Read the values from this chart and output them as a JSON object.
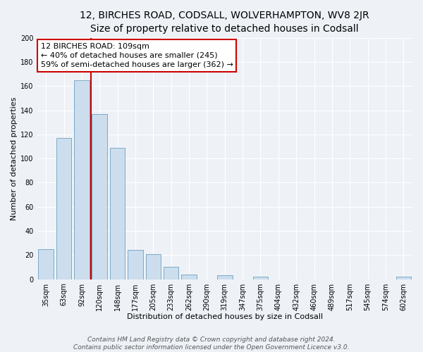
{
  "title": "12, BIRCHES ROAD, CODSALL, WOLVERHAMPTON, WV8 2JR",
  "subtitle": "Size of property relative to detached houses in Codsall",
  "xlabel": "Distribution of detached houses by size in Codsall",
  "ylabel": "Number of detached properties",
  "bar_color": "#ccdded",
  "bar_edge_color": "#7aaac8",
  "categories": [
    "35sqm",
    "63sqm",
    "92sqm",
    "120sqm",
    "148sqm",
    "177sqm",
    "205sqm",
    "233sqm",
    "262sqm",
    "290sqm",
    "319sqm",
    "347sqm",
    "375sqm",
    "404sqm",
    "432sqm",
    "460sqm",
    "489sqm",
    "517sqm",
    "545sqm",
    "574sqm",
    "602sqm"
  ],
  "values": [
    25,
    117,
    165,
    137,
    109,
    24,
    21,
    10,
    4,
    0,
    3,
    0,
    2,
    0,
    0,
    0,
    0,
    0,
    0,
    0,
    2
  ],
  "property_line_x": 2.5,
  "anno_line1": "12 BIRCHES ROAD: 109sqm",
  "anno_line2": "← 40% of detached houses are smaller (245)",
  "anno_line3": "59% of semi-detached houses are larger (362) →",
  "annotation_box_color": "white",
  "annotation_box_edgecolor": "#cc0000",
  "vline_color": "#cc0000",
  "ylim": [
    0,
    200
  ],
  "yticks": [
    0,
    20,
    40,
    60,
    80,
    100,
    120,
    140,
    160,
    180,
    200
  ],
  "footer1": "Contains HM Land Registry data © Crown copyright and database right 2024.",
  "footer2": "Contains public sector information licensed under the Open Government Licence v3.0.",
  "background_color": "#eef2f7",
  "grid_color": "#ffffff",
  "title_fontsize": 10,
  "subtitle_fontsize": 9,
  "axis_fontsize": 8,
  "tick_fontsize": 7,
  "footer_fontsize": 6.5,
  "anno_fontsize": 8
}
